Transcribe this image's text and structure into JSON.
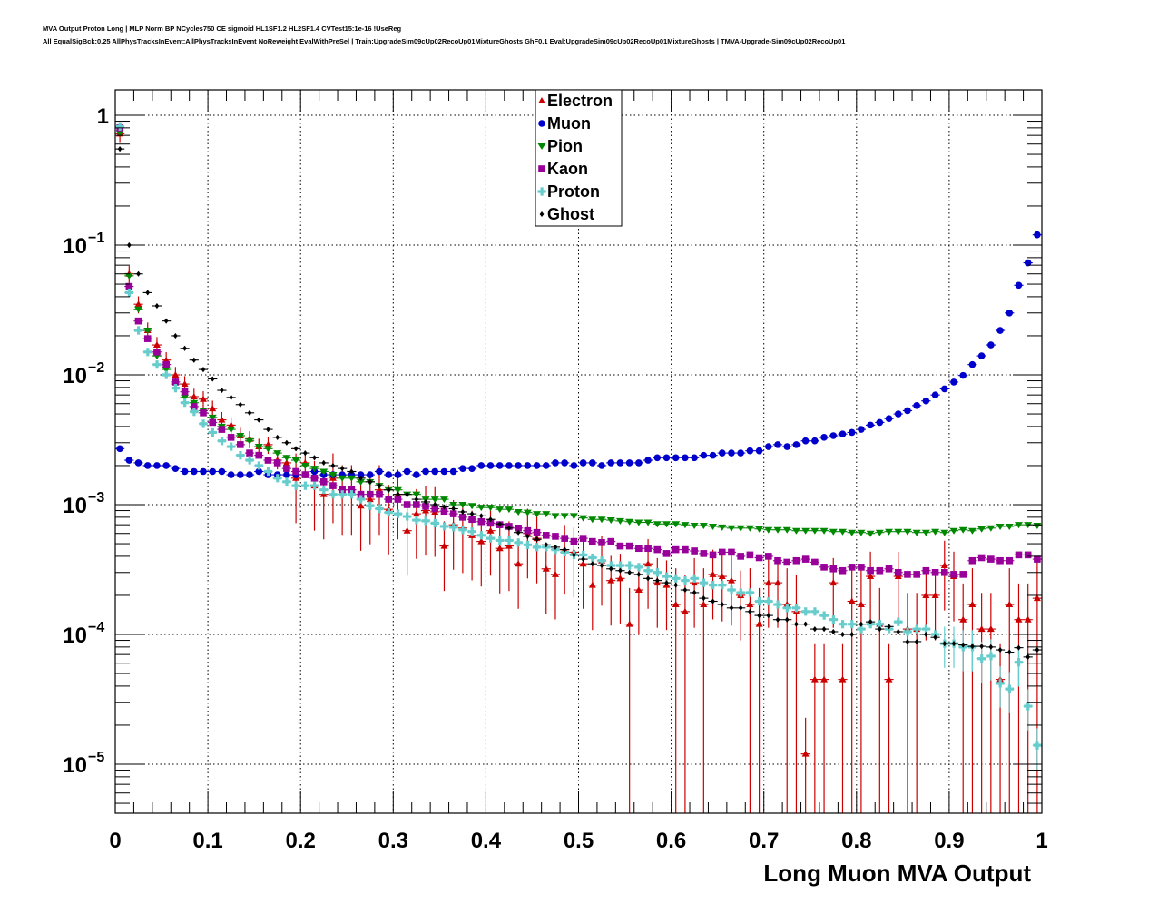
{
  "title_line1": "MVA Output Proton Long | MLP Norm BP NCycles750 CE sigmoid HL1SF1.2 HL2SF1.4 CVTest15:1e-16 !UseReg",
  "title_line2": "All EqualSigBck:0.25 AllPhysTracksInEvent:AllPhysTracksInEvent NoReweight EvalWithPreSel | Train:UpgradeSim09cUp02RecoUp01MixtureGhosts GhF0.1 Eval:UpgradeSim09cUp02RecoUp01MixtureGhosts | TMVA-Upgrade-Sim09cUp02RecoUp01",
  "chart_data": {
    "type": "scatter",
    "title": "MVA Output Proton Long | MLP Norm BP NCycles750 CE sigmoid HL1SF1.2 HL2SF1.4 CVTest15:1e-16 !UseReg",
    "xlabel": "Long Muon MVA Output",
    "ylabel": "",
    "xlim": [
      0,
      1
    ],
    "ylim": [
      4.5e-06,
      2.2
    ],
    "yscale": "log",
    "grid": true,
    "legend_position": "top-center",
    "x_ticks": [
      "0",
      "0.1",
      "0.2",
      "0.3",
      "0.4",
      "0.5",
      "0.6",
      "0.7",
      "0.8",
      "0.9",
      "1"
    ],
    "y_ticks": [
      {
        "value": 1,
        "base": "1",
        "exp": ""
      },
      {
        "value": 0.1,
        "base": "10",
        "exp": "−1"
      },
      {
        "value": 0.01,
        "base": "10",
        "exp": "−2"
      },
      {
        "value": 0.001,
        "base": "10",
        "exp": "−3"
      },
      {
        "value": 0.0001,
        "base": "10",
        "exp": "−4"
      },
      {
        "value": 1e-05,
        "base": "10",
        "exp": "−5"
      }
    ],
    "bin_width": 0.01,
    "series": [
      {
        "name": "Electron",
        "color": "#cc0000",
        "marker": "triangle-up",
        "values": [
          0.72,
          0.06,
          0.035,
          0.022,
          0.017,
          0.013,
          0.01,
          0.0085,
          0.0068,
          0.0065,
          0.0055,
          0.0045,
          0.0041,
          0.0034,
          0.0032,
          0.0028,
          0.0029,
          0.0022,
          0.0021,
          0.0016,
          0.0021,
          0.0014,
          0.0012,
          0.0016,
          0.0013,
          0.0013,
          0.00098,
          0.0011,
          0.0013,
          0.00092,
          0.0012,
          0.00063,
          0.00085,
          0.0009,
          0.00088,
          0.00048,
          0.0007,
          0.00066,
          0.00058,
          0.00052,
          0.00063,
          0.00046,
          0.00048,
          0.00035,
          0.0006,
          0.00055,
          0.00032,
          0.00029,
          0.00045,
          0.00043,
          0.00035,
          0.00024,
          0.00037,
          0.00026,
          0.00027,
          0.00012,
          0.00022,
          0.00035,
          0.00025,
          0.00024,
          0.00017,
          0.00015,
          0.00025,
          0.00017,
          0.00029,
          0.00028,
          0.00026,
          0.0002,
          0.00017,
          0.00012,
          0.00025,
          0.00025,
          0.00017,
          0.00015,
          1.2e-05,
          4.5e-05,
          4.5e-05,
          0.00025,
          4.5e-05,
          0.00018,
          0.00017,
          0.00028,
          0.00012,
          4.5e-05,
          0.00028,
          0.00011,
          0.00011,
          0.0002,
          0.0002,
          0.00034,
          0.00028,
          0.00013,
          0.00017,
          0.00011,
          0.00011,
          4.5e-05,
          0.00017,
          0.00013,
          0.00013,
          0.00019
        ]
      },
      {
        "name": "Muon",
        "color": "#0000cc",
        "marker": "circle",
        "values": [
          0.0027,
          0.0022,
          0.0021,
          0.002,
          0.002,
          0.002,
          0.0019,
          0.0018,
          0.0018,
          0.0018,
          0.0018,
          0.0018,
          0.0017,
          0.0017,
          0.0017,
          0.0018,
          0.0017,
          0.0017,
          0.0017,
          0.0017,
          0.0017,
          0.0018,
          0.0017,
          0.0017,
          0.0017,
          0.0017,
          0.0017,
          0.0017,
          0.0018,
          0.0017,
          0.0017,
          0.0018,
          0.0017,
          0.0018,
          0.0018,
          0.0018,
          0.0018,
          0.0019,
          0.0019,
          0.002,
          0.002,
          0.002,
          0.002,
          0.002,
          0.002,
          0.002,
          0.002,
          0.0021,
          0.0021,
          0.002,
          0.0021,
          0.0021,
          0.002,
          0.0021,
          0.0021,
          0.0021,
          0.0021,
          0.0022,
          0.0023,
          0.0023,
          0.0023,
          0.0023,
          0.0023,
          0.0024,
          0.0024,
          0.0025,
          0.0025,
          0.0025,
          0.0026,
          0.0026,
          0.0028,
          0.0029,
          0.0028,
          0.0029,
          0.0031,
          0.0031,
          0.0033,
          0.0034,
          0.0035,
          0.0036,
          0.0038,
          0.0041,
          0.0043,
          0.0046,
          0.005,
          0.0053,
          0.0058,
          0.0063,
          0.007,
          0.0078,
          0.0088,
          0.0099,
          0.012,
          0.014,
          0.017,
          0.022,
          0.03,
          0.049,
          0.073,
          0.12
        ]
      },
      {
        "name": "Pion",
        "color": "#008800",
        "marker": "triangle-down",
        "values": [
          0.73,
          0.058,
          0.032,
          0.022,
          0.014,
          0.011,
          0.0085,
          0.0067,
          0.0061,
          0.0053,
          0.0047,
          0.004,
          0.0038,
          0.0034,
          0.0031,
          0.0028,
          0.0027,
          0.0025,
          0.0023,
          0.0022,
          0.002,
          0.0019,
          0.0018,
          0.0017,
          0.0016,
          0.0016,
          0.0015,
          0.0015,
          0.0014,
          0.0013,
          0.0013,
          0.0012,
          0.0012,
          0.0011,
          0.0011,
          0.0011,
          0.001,
          0.001,
          0.00098,
          0.00095,
          0.00095,
          0.00092,
          0.00092,
          0.00088,
          0.00087,
          0.00085,
          0.00085,
          0.00082,
          0.00082,
          0.00082,
          0.00079,
          0.00077,
          0.00077,
          0.00076,
          0.00075,
          0.00074,
          0.00073,
          0.00073,
          0.00071,
          0.00071,
          0.00071,
          0.0007,
          0.00069,
          0.00069,
          0.00068,
          0.00067,
          0.00066,
          0.00066,
          0.00066,
          0.00065,
          0.00064,
          0.00064,
          0.00064,
          0.00063,
          0.00063,
          0.00063,
          0.00063,
          0.00062,
          0.00062,
          0.00061,
          0.00061,
          0.0006,
          0.00061,
          0.00062,
          0.00062,
          0.00062,
          0.00061,
          0.00061,
          0.00062,
          0.00061,
          0.00063,
          0.00064,
          0.00063,
          0.00065,
          0.00066,
          0.00068,
          0.00068,
          0.0007,
          0.0007,
          0.00069
        ]
      },
      {
        "name": "Kaon",
        "color": "#990099",
        "marker": "square",
        "values": [
          0.8,
          0.048,
          0.026,
          0.019,
          0.015,
          0.012,
          0.0088,
          0.0074,
          0.0057,
          0.0051,
          0.0043,
          0.0038,
          0.0033,
          0.0029,
          0.0025,
          0.0024,
          0.0022,
          0.0021,
          0.0019,
          0.0018,
          0.0017,
          0.0016,
          0.0015,
          0.0014,
          0.0013,
          0.0013,
          0.0012,
          0.0012,
          0.0012,
          0.0011,
          0.0011,
          0.001,
          0.001,
          0.00097,
          0.00093,
          0.00089,
          0.00085,
          0.0008,
          0.00077,
          0.00074,
          0.00072,
          0.0007,
          0.00068,
          0.00066,
          0.00063,
          0.00061,
          0.00058,
          0.00057,
          0.00055,
          0.00052,
          0.00055,
          0.00052,
          0.00051,
          0.00052,
          0.00048,
          0.00048,
          0.00046,
          0.00046,
          0.00045,
          0.00042,
          0.00045,
          0.00045,
          0.00044,
          0.00042,
          0.00041,
          0.00043,
          0.00043,
          0.0004,
          0.00041,
          0.00039,
          0.0004,
          0.00037,
          0.00036,
          0.00037,
          0.00038,
          0.00036,
          0.00033,
          0.00032,
          0.00031,
          0.00033,
          0.00033,
          0.00031,
          0.00031,
          0.00032,
          0.0003,
          0.00029,
          0.00029,
          0.00031,
          0.0003,
          0.0003,
          0.00029,
          0.00029,
          0.00037,
          0.00039,
          0.00038,
          0.00037,
          0.00037,
          0.00041,
          0.00041,
          0.00038
        ]
      },
      {
        "name": "Proton",
        "color": "#66cccc",
        "marker": "cross",
        "values": [
          0.82,
          0.043,
          0.022,
          0.015,
          0.012,
          0.01,
          0.0079,
          0.0061,
          0.0052,
          0.0042,
          0.0036,
          0.0031,
          0.0028,
          0.0024,
          0.0022,
          0.002,
          0.0018,
          0.0016,
          0.0015,
          0.0014,
          0.0014,
          0.0014,
          0.0013,
          0.0012,
          0.0012,
          0.0012,
          0.0011,
          0.00098,
          0.00093,
          0.00087,
          0.00085,
          0.00081,
          0.00076,
          0.00075,
          0.00072,
          0.00068,
          0.00067,
          0.00064,
          0.00062,
          0.00058,
          0.00055,
          0.00053,
          0.00053,
          0.00051,
          0.00049,
          0.00047,
          0.00047,
          0.00045,
          0.00043,
          0.00041,
          0.00041,
          0.00039,
          0.00037,
          0.00034,
          0.00034,
          0.00034,
          0.00033,
          0.00031,
          0.0003,
          0.00028,
          0.00027,
          0.00026,
          0.00027,
          0.00025,
          0.00024,
          0.00024,
          0.00022,
          0.00021,
          0.00021,
          0.00018,
          0.00018,
          0.00017,
          0.00016,
          0.00016,
          0.00015,
          0.00015,
          0.00014,
          0.00013,
          0.00012,
          0.00012,
          0.00011,
          0.00012,
          0.00012,
          0.00011,
          0.000125,
          0.000105,
          0.00011,
          0.00011,
          0.0001,
          8.5e-05,
          8.5e-05,
          8e-05,
          8e-05,
          6.5e-05,
          6.8e-05,
          4.2e-05,
          3.8e-05,
          6.1e-05,
          2.8e-05,
          1.4e-05
        ]
      },
      {
        "name": "Ghost",
        "color": "#000000",
        "marker": "diamond",
        "values": [
          0.55,
          0.1,
          0.06,
          0.043,
          0.034,
          0.026,
          0.02,
          0.016,
          0.013,
          0.011,
          0.0093,
          0.0076,
          0.0067,
          0.0059,
          0.0051,
          0.0045,
          0.0038,
          0.0033,
          0.003,
          0.0027,
          0.0025,
          0.0023,
          0.0021,
          0.002,
          0.0019,
          0.0018,
          0.0016,
          0.0015,
          0.0014,
          0.0013,
          0.0012,
          0.0012,
          0.0011,
          0.00105,
          0.001,
          0.00096,
          0.00093,
          0.00088,
          0.00085,
          0.00082,
          0.00077,
          0.00071,
          0.00066,
          0.00061,
          0.00057,
          0.00054,
          0.00049,
          0.00047,
          0.00045,
          0.00041,
          0.00038,
          0.00035,
          0.00034,
          0.00032,
          0.00031,
          0.0003,
          0.00029,
          0.00027,
          0.00026,
          0.00025,
          0.00024,
          0.00022,
          0.00021,
          0.00019,
          0.00018,
          0.00017,
          0.00016,
          0.00016,
          0.00015,
          0.00014,
          0.00014,
          0.00013,
          0.00013,
          0.00012,
          0.00012,
          0.00011,
          0.00011,
          0.000105,
          0.0001,
          0.0001,
          0.00012,
          0.000125,
          0.00011,
          0.000115,
          0.000105,
          8.8e-05,
          8.8e-05,
          0.0001,
          9.5e-05,
          8.5e-05,
          8.5e-05,
          8.3e-05,
          8.1e-05,
          8.1e-05,
          8e-05,
          7.6e-05,
          7.3e-05,
          7.9e-05,
          6.7e-05,
          7.6e-05
        ]
      }
    ]
  },
  "legend": [
    "Electron",
    "Muon",
    "Pion",
    "Kaon",
    "Proton",
    "Ghost"
  ]
}
